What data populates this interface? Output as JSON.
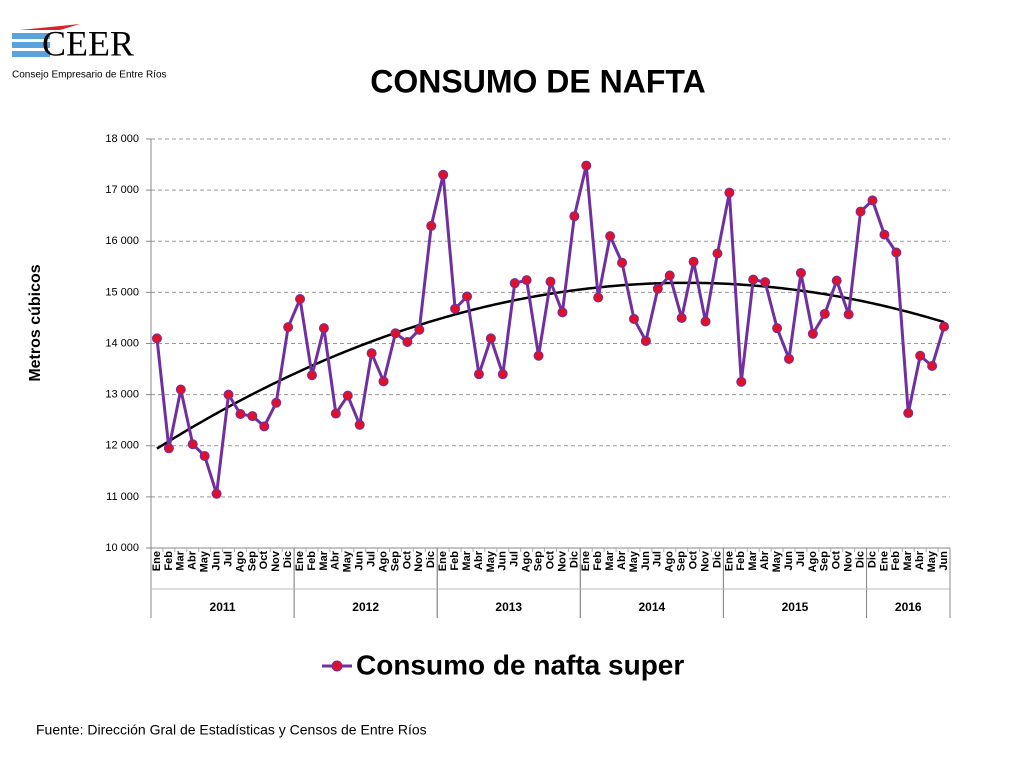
{
  "logo": {
    "name": "CEER",
    "subtitle": "Consejo Empresario de Entre Ríos"
  },
  "source": "Fuente: Dirección Gral de Estadísticas y Censos de Entre Ríos",
  "chart_data": {
    "type": "line",
    "title": "CONSUMO DE NAFTA",
    "y_label": "Metros cúbicos",
    "groups": [
      {
        "label": "2011",
        "categories": [
          "Ene",
          "Feb",
          "Mar",
          "Abr",
          "May",
          "Jun",
          "Jul",
          "Ago",
          "Sep",
          "Oct",
          "Nov",
          "Dic"
        ]
      },
      {
        "label": "2012",
        "categories": [
          "Ene",
          "Feb",
          "Mar",
          "Abr",
          "May",
          "Jun",
          "Jul",
          "Ago",
          "Sep",
          "Oct",
          "Nov",
          "Dic"
        ]
      },
      {
        "label": "2013",
        "categories": [
          "Ene",
          "Feb",
          "Mar",
          "Abr",
          "May",
          "Jun",
          "Jul",
          "Ago",
          "Sep",
          "Oct",
          "Nov",
          "Dic"
        ]
      },
      {
        "label": "2014",
        "categories": [
          "Ene",
          "Feb",
          "Mar",
          "Abr",
          "May",
          "Jun",
          "Jul",
          "Ago",
          "Sep",
          "Oct",
          "Nov",
          "Dic"
        ]
      },
      {
        "label": "2015",
        "categories": [
          "Ene",
          "Feb",
          "Mar",
          "Abr",
          "May",
          "Jun",
          "Jul",
          "Ago",
          "Sep",
          "Oct",
          "Nov",
          "Dic"
        ]
      },
      {
        "label": "2016",
        "categories": [
          "Dic",
          "Ene",
          "Feb",
          "Mar",
          "Abr",
          "May",
          "Jun"
        ]
      }
    ],
    "series": [
      {
        "name": "Consumo de nafta super",
        "color": "#7030a0",
        "marker_color": "#e0102a",
        "values": [
          14100,
          11950,
          13100,
          12030,
          11800,
          11060,
          13000,
          12620,
          12580,
          12380,
          12840,
          14320,
          14870,
          13380,
          14300,
          12630,
          12980,
          12410,
          13810,
          13260,
          14200,
          14030,
          14270,
          16300,
          17300,
          14680,
          14920,
          13400,
          14100,
          13400,
          15180,
          15240,
          13760,
          15210,
          14610,
          16490,
          17480,
          14900,
          16100,
          15580,
          14480,
          14050,
          15070,
          15330,
          14500,
          15600,
          14430,
          15760,
          16950,
          13250,
          15250,
          15200,
          14300,
          13700,
          15380,
          14190,
          14580,
          15230,
          14570,
          16580,
          16800,
          16130,
          15780,
          12640,
          13760,
          13560,
          14330
        ]
      }
    ],
    "trendline": {
      "color": "#000000",
      "degree": 2
    },
    "ylim": [
      10000,
      18000
    ],
    "yticks": [
      {
        "value": 10000,
        "label": "10 000"
      },
      {
        "value": 11000,
        "label": "11 000"
      },
      {
        "value": 12000,
        "label": "12 000"
      },
      {
        "value": 13000,
        "label": "13 000"
      },
      {
        "value": 14000,
        "label": "14 000"
      },
      {
        "value": 15000,
        "label": "15 000"
      },
      {
        "value": 16000,
        "label": "16 000"
      },
      {
        "value": 17000,
        "label": "17 000"
      },
      {
        "value": 18000,
        "label": "18 000"
      }
    ],
    "grid": true,
    "legend": "bottom"
  }
}
